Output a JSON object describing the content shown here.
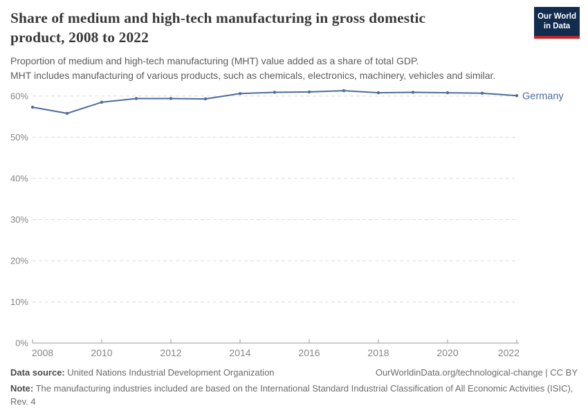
{
  "logo": {
    "line1": "Our World",
    "line2": "in Data"
  },
  "header": {
    "title": "Share of medium and high-tech manufacturing in gross domestic product, 2008 to 2022",
    "subtitle": [
      "Proportion of medium and high-tech manufacturing (MHT) value added as a share of total GDP.",
      "MHT includes manufacturing of various products, such as chemicals, electronics, machinery, vehicles and similar."
    ]
  },
  "colors": {
    "line": "#4c6a9c",
    "grid": "#dcdcdc",
    "axis": "#999999",
    "tick_label": "#858585",
    "logo_navy": "#122c4f",
    "logo_red": "#c72523"
  },
  "chart_data": {
    "type": "line",
    "title": "Share of medium and high-tech manufacturing in gross domestic product, 2008 to 2022",
    "x": [
      2008,
      2009,
      2010,
      2011,
      2012,
      2013,
      2014,
      2015,
      2016,
      2017,
      2018,
      2019,
      2020,
      2021,
      2022
    ],
    "series": [
      {
        "name": "Germany",
        "color": "#4c6a9c",
        "values": [
          57.3,
          55.8,
          58.5,
          59.4,
          59.4,
          59.3,
          60.6,
          60.9,
          61.0,
          61.3,
          60.8,
          60.9,
          60.8,
          60.7,
          60.1
        ]
      }
    ],
    "x_ticks": [
      2008,
      2010,
      2012,
      2014,
      2016,
      2018,
      2020,
      2022
    ],
    "y_ticks": [
      0,
      10,
      20,
      30,
      40,
      50,
      60
    ],
    "y_tick_suffix": "%",
    "xlabel": "",
    "ylabel": "",
    "ylim": [
      0,
      63.5
    ],
    "xlim": [
      2008,
      2022
    ],
    "grid": "horizontal-dashed",
    "legend_position": "end-of-line"
  },
  "footer": {
    "datasource_label": "Data source:",
    "datasource_value": "United Nations Industrial Development Organization",
    "attribution": "OurWorldinData.org/technological-change | CC BY",
    "note_label": "Note:",
    "note_value": "The manufacturing industries included are based on the International Standard Industrial Classification of All Economic Activities (ISIC), Rev. 4"
  }
}
